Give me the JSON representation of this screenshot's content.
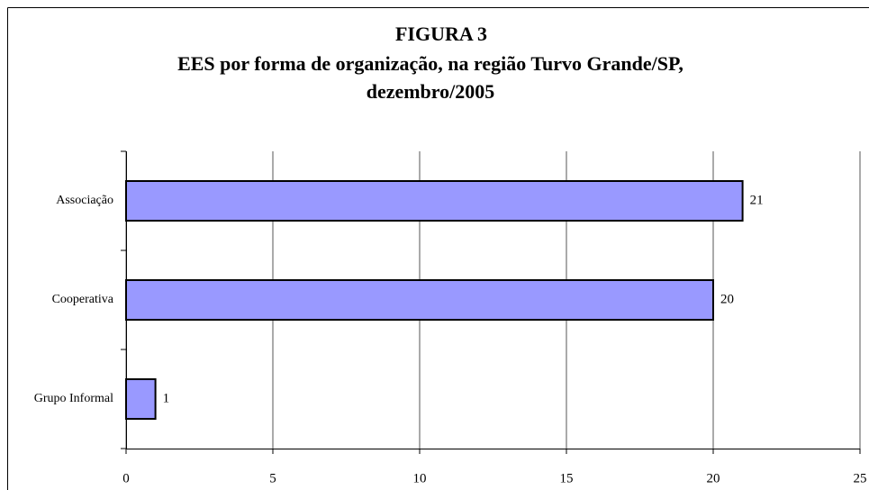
{
  "chart_data": {
    "type": "bar",
    "orientation": "horizontal",
    "title": "FIGURA 3",
    "subtitle": [
      "EES por forma de organização, na região Turvo Grande/SP,",
      "dezembro/2005"
    ],
    "categories": [
      "Associação",
      "Cooperativa",
      "Grupo Informal"
    ],
    "values": [
      21,
      20,
      1
    ],
    "color": "#9999ff",
    "xlim": [
      0,
      25
    ],
    "xticks": [
      0,
      5,
      10,
      15,
      20,
      25
    ],
    "grid": true
  }
}
